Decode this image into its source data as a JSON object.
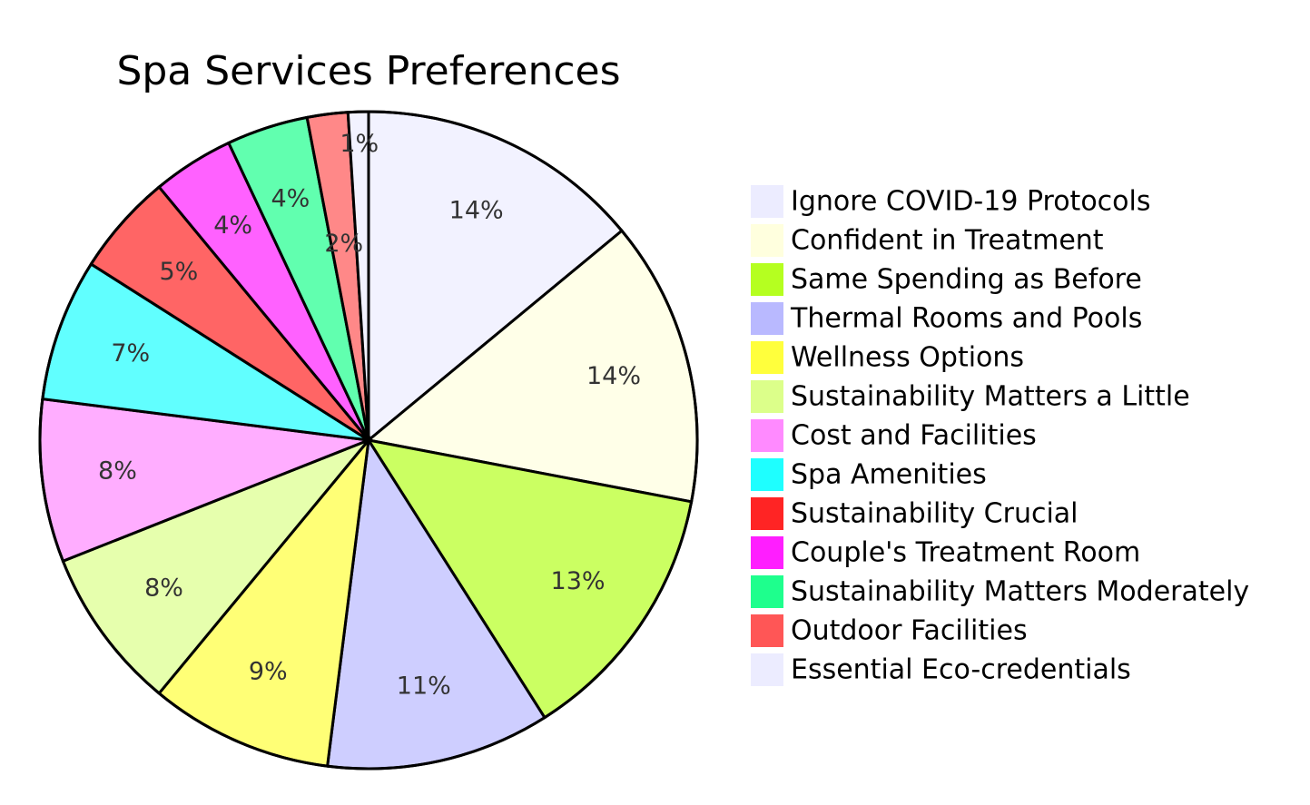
{
  "chart_data": {
    "type": "pie",
    "title": "Spa Services Preferences",
    "start_angle": "12 o'clock, clockwise",
    "legend_placement": "right",
    "slice_opacity": 0.7,
    "slices": [
      {
        "label": "Ignore COVID-19 Protocols",
        "value": 14,
        "display": "14%",
        "color": "#ECECFF"
      },
      {
        "label": "Confident in Treatment",
        "value": 14,
        "display": "14%",
        "color": "#FFFFDE"
      },
      {
        "label": "Same Spending as Before",
        "value": 13,
        "display": "13%",
        "color": "#B5FF20"
      },
      {
        "label": "Thermal Rooms and Pools",
        "value": 11,
        "display": "11%",
        "color": "#B9B9FF"
      },
      {
        "label": "Wellness Options",
        "value": 9,
        "display": "9%",
        "color": "#FFFF3C"
      },
      {
        "label": "Sustainability Matters a Little",
        "value": 8,
        "display": "8%",
        "color": "#DCFF8A"
      },
      {
        "label": "Cost and Facilities",
        "value": 8,
        "display": "8%",
        "color": "#FF8AFF"
      },
      {
        "label": "Spa Amenities",
        "value": 7,
        "display": "7%",
        "color": "#1EFFFF"
      },
      {
        "label": "Sustainability Crucial",
        "value": 5,
        "display": "5%",
        "color": "#FF2424"
      },
      {
        "label": "Couple's Treatment Room",
        "value": 4,
        "display": "4%",
        "color": "#FF1EFF"
      },
      {
        "label": "Sustainability Matters Moderately",
        "value": 4,
        "display": "4%",
        "color": "#1EFF8D"
      },
      {
        "label": "Outdoor Facilities",
        "value": 2,
        "display": "2%",
        "color": "#FF5656"
      },
      {
        "label": "Essential Eco-credentials",
        "value": 1,
        "display": "1%",
        "color": "#ECECFF"
      }
    ]
  }
}
